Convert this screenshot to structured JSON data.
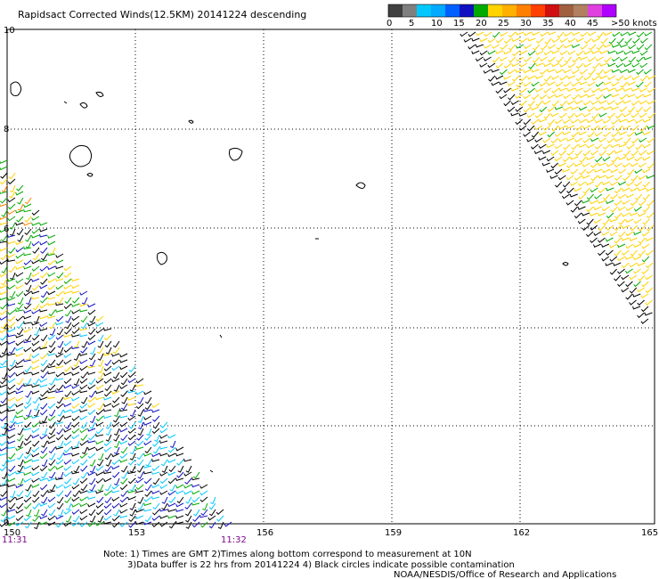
{
  "title": "Rapidsact Corrected Winds(12.5KM) 20141224 descending",
  "legend": {
    "colors": [
      "#404040",
      "#7f7f7f",
      "#00c8ff",
      "#00aaff",
      "#0060ff",
      "#1010c0",
      "#00aa00",
      "#ffd200",
      "#ffb000",
      "#ff8000",
      "#ff4000",
      "#d01010",
      "#a06040",
      "#b08060",
      "#e040e0",
      "#b000ff"
    ],
    "tick_labels": [
      "0",
      "5",
      "10",
      "15",
      "20",
      "25",
      "30",
      "35",
      "40",
      "45"
    ],
    "end_label": ">50 knots"
  },
  "axes": {
    "lon_ticks": [
      "150",
      "153",
      "156",
      "159",
      "162",
      "165"
    ],
    "lat_ticks": [
      "10",
      "8",
      "6",
      "4",
      "2",
      "0"
    ]
  },
  "times": {
    "left": "11:31",
    "right": "11:32"
  },
  "notes": {
    "line1": "Note: 1) Times are GMT 2)Times along bottom correspond to measurement at 10N",
    "line2": "3)Data buffer is 22 hrs from 20141224 4) Black circles indicate possible contamination",
    "line3": "NOAA/NESDIS/Office of Research and Applications"
  }
}
